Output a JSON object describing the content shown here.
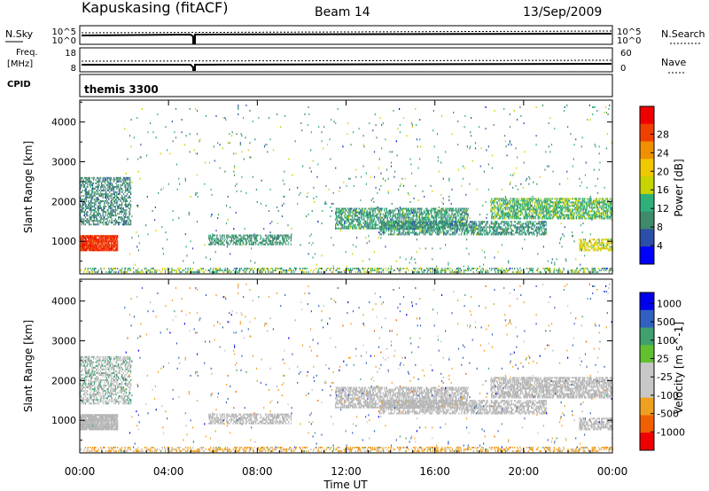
{
  "header": {
    "station": "Kapuskasing (fitACF)",
    "beam": "Beam 14",
    "date": "13/Sep/2009"
  },
  "top_panels": {
    "nsky_label": "N.Sky",
    "nsky_ticks": [
      "10^5",
      "10^0"
    ],
    "nsearch_label": "N.Search",
    "nsearch_ticks": [
      "10^5",
      "10^0"
    ],
    "freq_label": "Freq.",
    "freq_unit": "[MHz]",
    "freq_ticks": [
      "18",
      "8"
    ],
    "nave_label": "Nave",
    "nave_ticks": [
      "60",
      "0"
    ],
    "cpid_label": "CPID",
    "cpid_value": "themis 3300"
  },
  "colors": {
    "power_scale": [
      "#0000ff",
      "#2b4fa8",
      "#3f8a6a",
      "#2fb07a",
      "#c8d400",
      "#f0c800",
      "#f09000",
      "#f04000",
      "#f00000"
    ],
    "velocity_scale": [
      "#0000ee",
      "#3060c0",
      "#40a070",
      "#60c030",
      "#c8c8c8",
      "#c8c8c8",
      "#f0a020",
      "#f06000",
      "#f00000"
    ],
    "ground_scatter": "#b4b4b4"
  },
  "chart_data": [
    {
      "type": "heatmap",
      "title": "",
      "variable": "Power",
      "ylabel": "Slant Range [km]",
      "xlabel": "Time UT",
      "x_ticks": [
        "00:00",
        "04:00",
        "08:00",
        "12:00",
        "16:00",
        "20:00",
        "00:00"
      ],
      "x_range_hours": [
        0,
        24
      ],
      "y_ticks": [
        1000,
        2000,
        3000,
        4000
      ],
      "ylim": [
        180,
        4550
      ],
      "colorbar": {
        "label": "Power [dB]",
        "ticks": [
          "4",
          "8",
          "12",
          "16",
          "20",
          "24",
          "28"
        ],
        "range": [
          0,
          30
        ]
      },
      "regions": [
        {
          "t": [
            0.0,
            1.7
          ],
          "r": [
            750,
            1150
          ],
          "level": 26,
          "spread": 4,
          "density": 0.9
        },
        {
          "t": [
            0.0,
            2.3
          ],
          "r": [
            1400,
            2600
          ],
          "level": 8,
          "spread": 4,
          "density": 0.45
        },
        {
          "t": [
            5.8,
            9.5
          ],
          "r": [
            900,
            1150
          ],
          "level": 9,
          "spread": 4,
          "density": 0.5
        },
        {
          "t": [
            11.5,
            17.5
          ],
          "r": [
            1300,
            1800
          ],
          "level": 10,
          "spread": 6,
          "density": 0.55
        },
        {
          "t": [
            13.5,
            21.0
          ],
          "r": [
            1150,
            1500
          ],
          "level": 9,
          "spread": 6,
          "density": 0.5
        },
        {
          "t": [
            18.5,
            24.0
          ],
          "r": [
            1550,
            2050
          ],
          "level": 12,
          "spread": 6,
          "density": 0.55
        },
        {
          "t": [
            22.5,
            24.0
          ],
          "r": [
            750,
            1050
          ],
          "level": 16,
          "spread": 6,
          "density": 0.5
        },
        {
          "t": [
            0.0,
            24.0
          ],
          "r": [
            200,
            330
          ],
          "level": 12,
          "spread": 10,
          "density": 0.35
        },
        {
          "t": [
            2.0,
            24.0
          ],
          "r": [
            300,
            4400
          ],
          "level": 10,
          "spread": 10,
          "density": 0.012
        }
      ]
    },
    {
      "type": "heatmap",
      "title": "",
      "variable": "Velocity",
      "ylabel": "Slant Range [km]",
      "xlabel": "Time UT",
      "x_ticks": [
        "00:00",
        "04:00",
        "08:00",
        "12:00",
        "16:00",
        "20:00",
        "00:00"
      ],
      "x_range_hours": [
        0,
        24
      ],
      "y_ticks": [
        1000,
        2000,
        3000,
        4000
      ],
      "ylim": [
        180,
        4550
      ],
      "colorbar": {
        "label": "Velocity [m s^-1]",
        "ticks": [
          "1000",
          "500",
          "100",
          "25",
          "-25",
          "-100",
          "-500",
          "-1000"
        ]
      },
      "regions": [
        {
          "t": [
            0.0,
            1.7
          ],
          "r": [
            750,
            1150
          ],
          "level": 0,
          "spread": 30,
          "density": 0.9
        },
        {
          "t": [
            0.0,
            2.3
          ],
          "r": [
            1400,
            2600
          ],
          "level": 0,
          "spread": 120,
          "density": 0.45
        },
        {
          "t": [
            5.8,
            9.5
          ],
          "r": [
            900,
            1150
          ],
          "level": 0,
          "spread": 20,
          "density": 0.5
        },
        {
          "t": [
            11.5,
            17.5
          ],
          "r": [
            1300,
            1800
          ],
          "level": 0,
          "spread": 20,
          "density": 0.55
        },
        {
          "t": [
            13.5,
            21.0
          ],
          "r": [
            1150,
            1500
          ],
          "level": 0,
          "spread": 20,
          "density": 0.5
        },
        {
          "t": [
            18.5,
            24.0
          ],
          "r": [
            1550,
            2050
          ],
          "level": 0,
          "spread": 20,
          "density": 0.55
        },
        {
          "t": [
            22.5,
            24.0
          ],
          "r": [
            750,
            1050
          ],
          "level": 0,
          "spread": 20,
          "density": 0.5
        },
        {
          "t": [
            0.0,
            24.0
          ],
          "r": [
            200,
            330
          ],
          "level": -200,
          "spread": 400,
          "density": 0.35
        },
        {
          "t": [
            2.0,
            24.0
          ],
          "r": [
            300,
            4400
          ],
          "level": 0,
          "spread": 900,
          "density": 0.012
        }
      ]
    }
  ]
}
